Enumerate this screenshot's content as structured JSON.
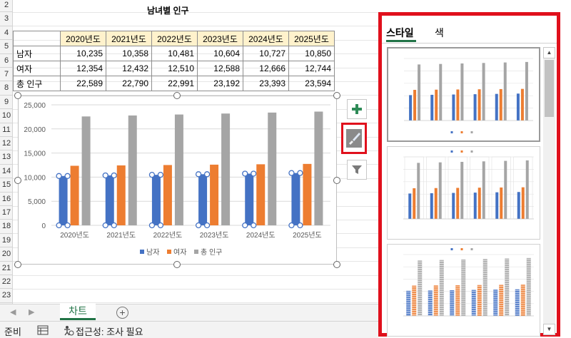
{
  "sheet": {
    "row_numbers": [
      "2",
      "3",
      "4",
      "5",
      "6",
      "7",
      "8",
      "9",
      "10",
      "11",
      "12",
      "13",
      "14",
      "15",
      "16",
      "17",
      "18",
      "19",
      "20",
      "21",
      "22",
      "23"
    ],
    "title": "남녀별 인구",
    "table": {
      "headers": [
        "2020년도",
        "2021년도",
        "2022년도",
        "2023년도",
        "2024년도",
        "2025년도"
      ],
      "rows": [
        {
          "label": "남자",
          "values": [
            "10,235",
            "10,358",
            "10,481",
            "10,604",
            "10,727",
            "10,850"
          ]
        },
        {
          "label": "여자",
          "values": [
            "12,354",
            "12,432",
            "12,510",
            "12,588",
            "12,666",
            "12,744"
          ]
        },
        {
          "label": "총 인구",
          "values": [
            "22,589",
            "22,790",
            "22,991",
            "23,192",
            "23,393",
            "23,594"
          ]
        }
      ]
    }
  },
  "chart_data": {
    "type": "bar",
    "categories": [
      "2020년도",
      "2021년도",
      "2022년도",
      "2023년도",
      "2024년도",
      "2025년도"
    ],
    "series": [
      {
        "name": "남자",
        "color": "#4472c4",
        "values": [
          10235,
          10358,
          10481,
          10604,
          10727,
          10850
        ]
      },
      {
        "name": "여자",
        "color": "#ed7d31",
        "values": [
          12354,
          12432,
          12510,
          12588,
          12666,
          12744
        ]
      },
      {
        "name": "총 인구",
        "color": "#a5a5a5",
        "values": [
          22589,
          22790,
          22991,
          23192,
          23393,
          23594
        ]
      }
    ],
    "yticks": [
      "0",
      "5,000",
      "10,000",
      "15,000",
      "20,000",
      "25,000"
    ],
    "ylim": [
      0,
      25000
    ],
    "grid": true,
    "legend": "bottom"
  },
  "chart_tools": {
    "add_element_icon": "plus-icon",
    "styles_icon": "paintbrush-icon",
    "filter_icon": "funnel-icon"
  },
  "pane": {
    "tab_style": "스타일",
    "tab_color": "색"
  },
  "sheet_tabs": {
    "active": "차트",
    "add": "+"
  },
  "status": {
    "ready": "준비",
    "accessibility": "접근성: 조사 필요"
  },
  "colors": {
    "highlight": "#e0101c",
    "excel_green": "#217346",
    "header_fill": "#fff2cc"
  }
}
